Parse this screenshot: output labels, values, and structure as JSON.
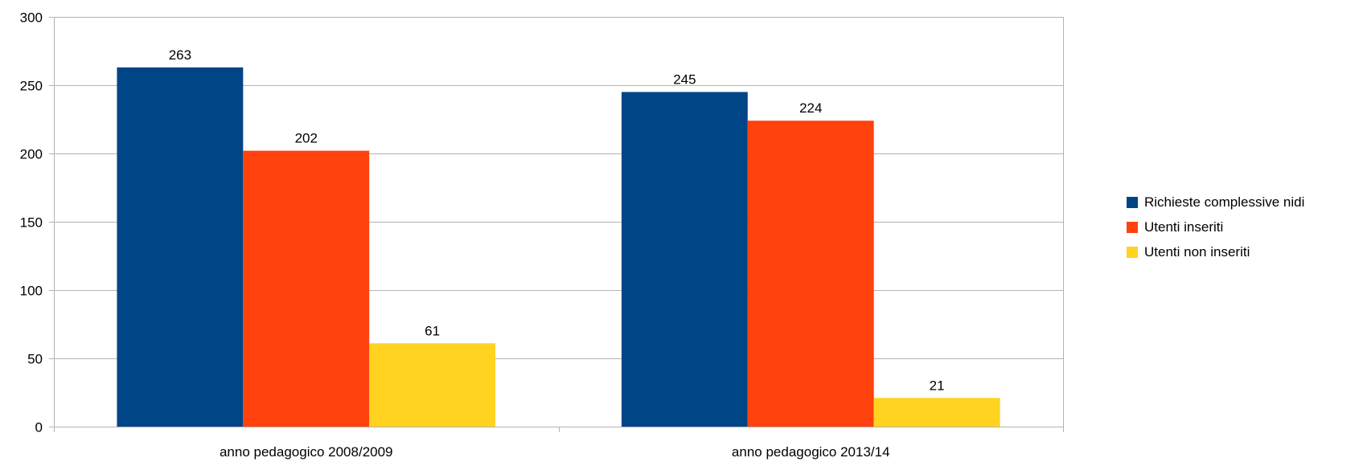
{
  "chart_data": {
    "type": "bar",
    "categories": [
      "anno pedagogico 2008/2009",
      "anno pedagogico 2013/14"
    ],
    "series": [
      {
        "name": "Richieste complessive nidi",
        "values": [
          263,
          245
        ],
        "color": "#004586"
      },
      {
        "name": "Utenti inseriti",
        "values": [
          202,
          224
        ],
        "color": "#ff420e"
      },
      {
        "name": "Utenti non inseriti",
        "values": [
          61,
          21
        ],
        "color": "#ffd320"
      }
    ],
    "ylim": [
      0,
      300
    ],
    "yticks": [
      0,
      50,
      100,
      150,
      200,
      250,
      300
    ],
    "grid": true,
    "legend_position": "right",
    "data_labels": true,
    "gridline_color": "#b3b3b3"
  }
}
